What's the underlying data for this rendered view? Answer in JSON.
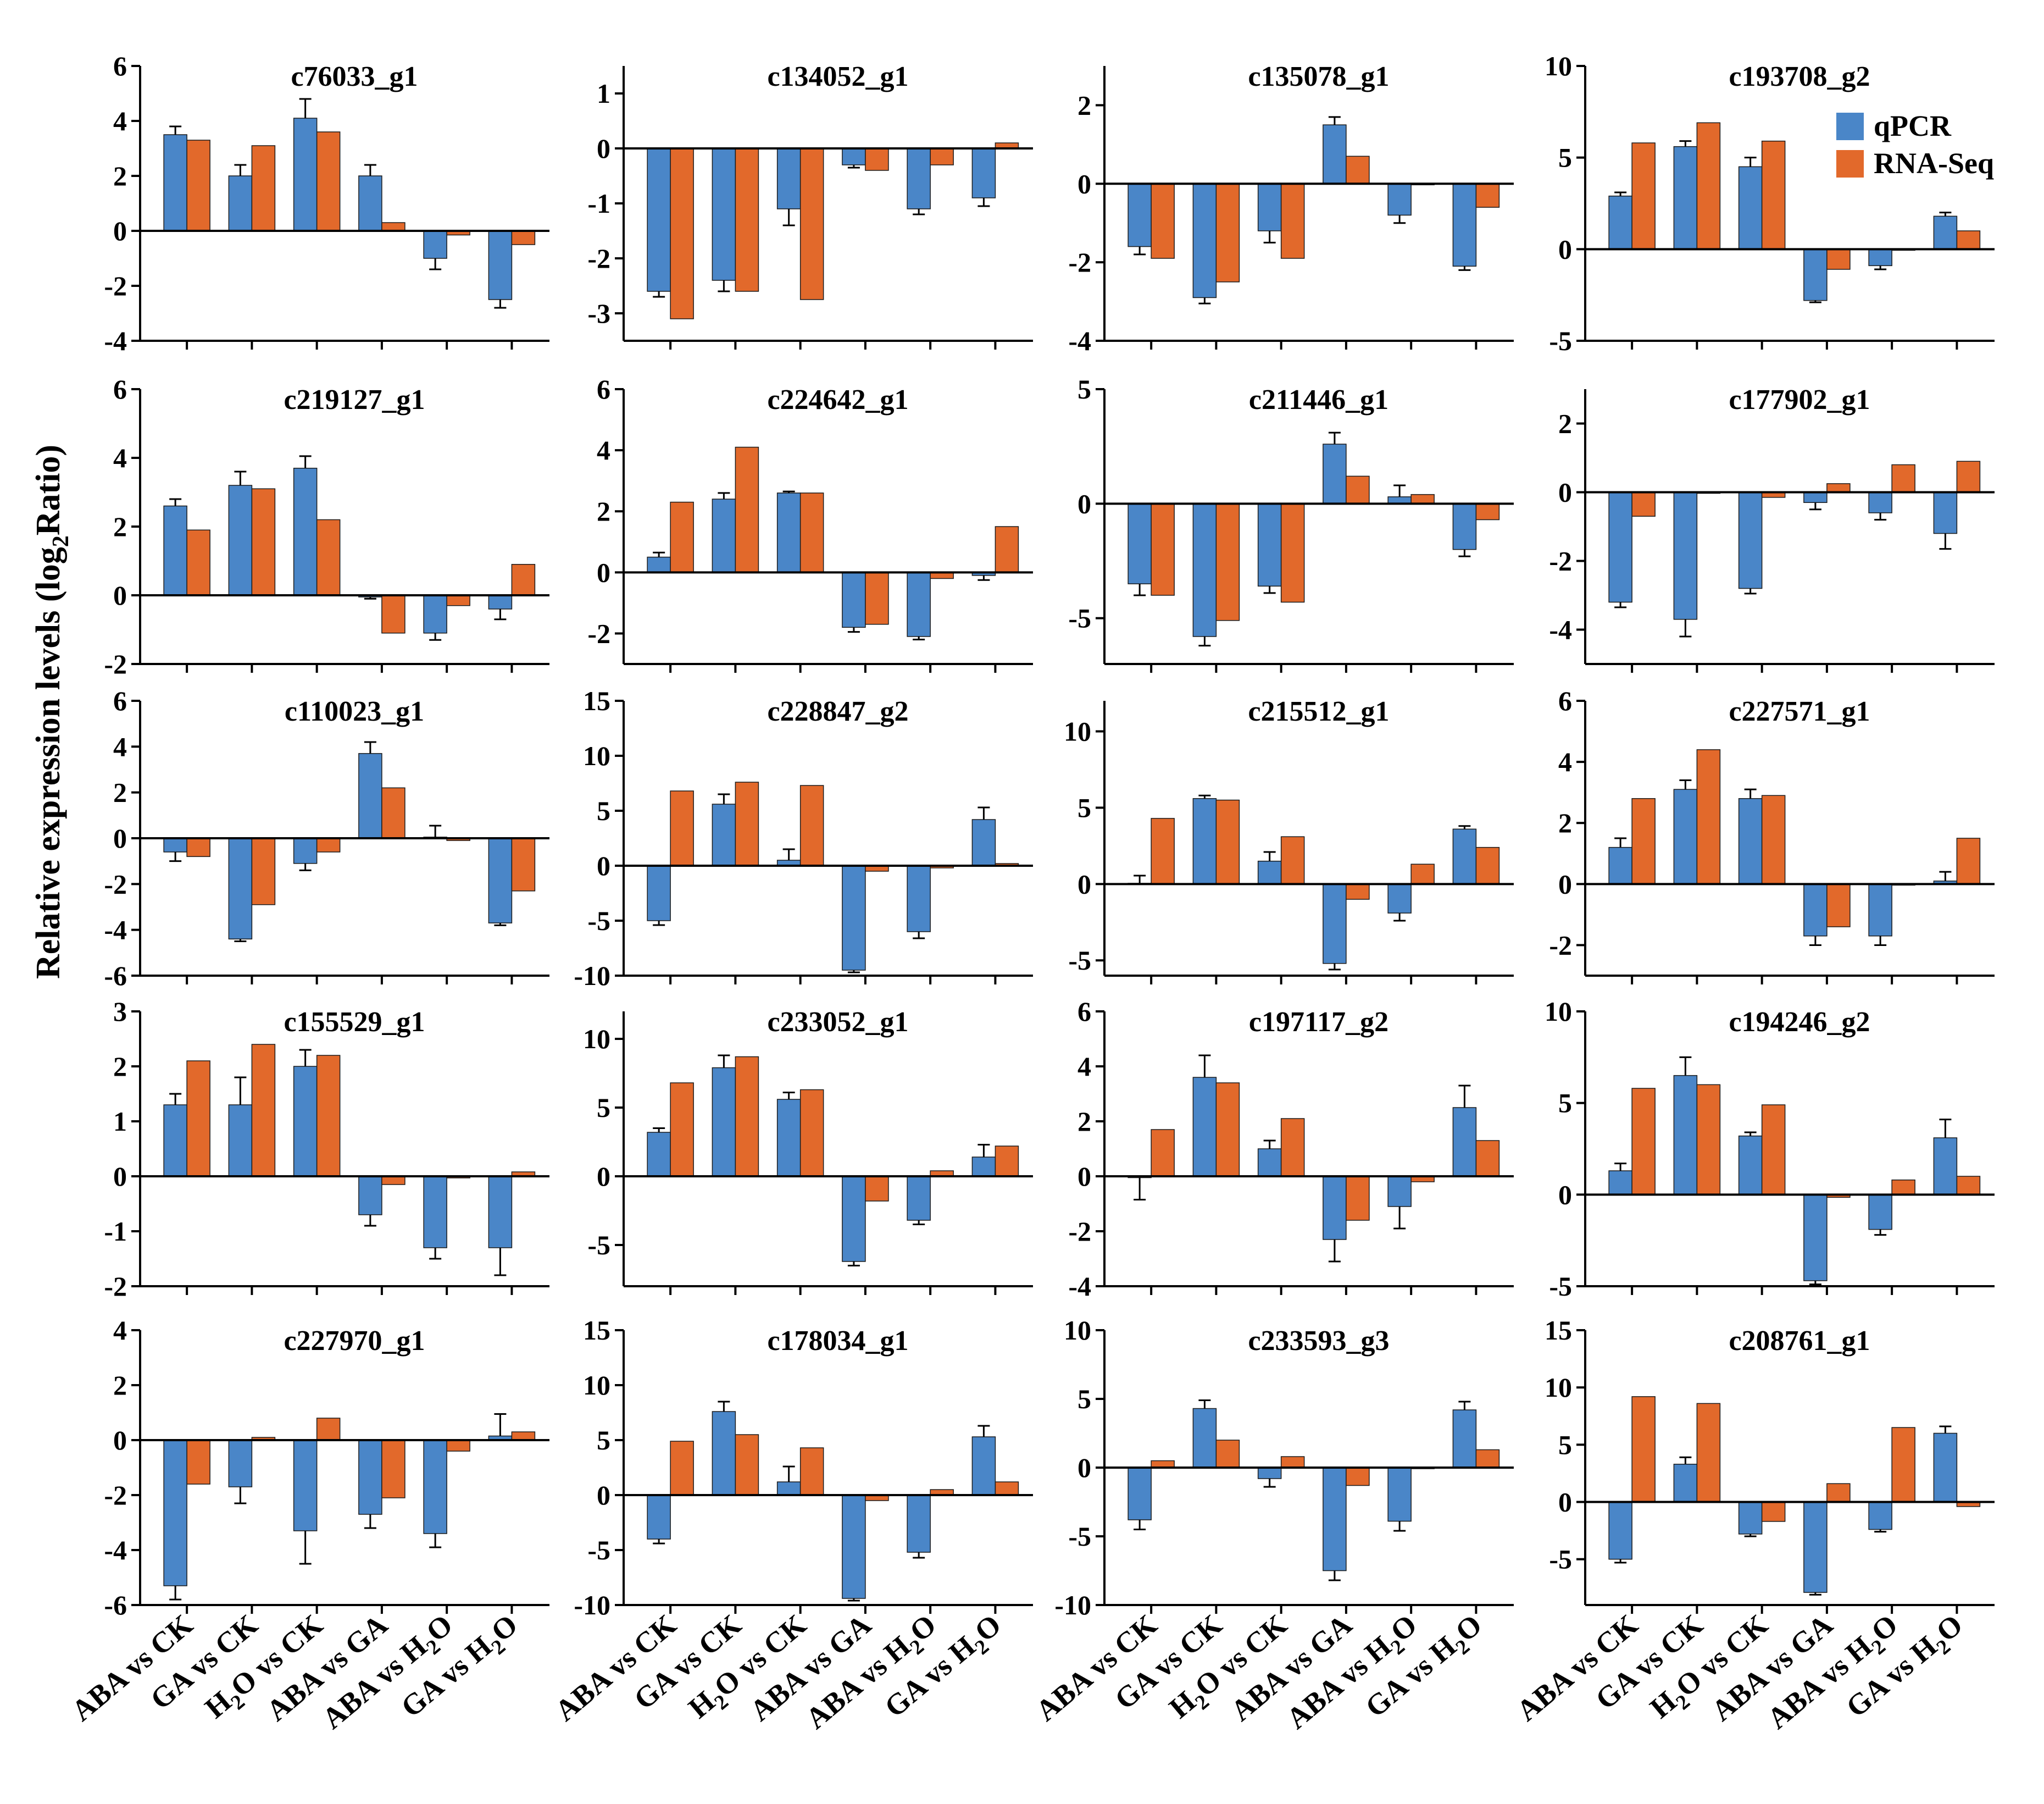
{
  "figure": {
    "ylabel_main": "Relative expression  levels (log",
    "ylabel_sub": "2",
    "ylabel_end": "Ratio)"
  },
  "legend": {
    "entries": [
      {
        "label": "qPCR",
        "color": "#4a86c8"
      },
      {
        "label": "RNA-Seq",
        "color": "#e2692b"
      }
    ]
  },
  "chart_data": {
    "type": "bar",
    "categories": [
      {
        "pre": "ABA vs CK",
        "sub": "",
        "post": ""
      },
      {
        "pre": "GA vs CK",
        "sub": "",
        "post": ""
      },
      {
        "pre": "H",
        "sub": "2",
        "post": "O vs CK"
      },
      {
        "pre": "ABA vs GA",
        "sub": "",
        "post": ""
      },
      {
        "pre": "ABA vs H",
        "sub": "2",
        "post": "O"
      },
      {
        "pre": "GA vs H",
        "sub": "2",
        "post": "O"
      }
    ],
    "series_names": [
      "qPCR",
      "RNA-Seq"
    ],
    "panels": [
      {
        "title": "c76033_g1",
        "ylim": [
          -4,
          6
        ],
        "ticks": [
          6,
          4,
          2,
          0,
          -2,
          -4
        ],
        "qpcr": [
          3.5,
          2.0,
          4.1,
          2.0,
          -1.0,
          -2.5
        ],
        "err": [
          0.3,
          0.4,
          0.7,
          0.4,
          0.4,
          0.3
        ],
        "rnaseq": [
          3.3,
          3.1,
          3.6,
          0.3,
          -0.15,
          -0.5
        ]
      },
      {
        "title": "c134052_g1",
        "ylim": [
          -3.5,
          1.5
        ],
        "ticks": [
          1,
          0,
          -1,
          -2,
          -3
        ],
        "qpcr": [
          -2.6,
          -2.4,
          -1.1,
          -0.3,
          -1.1,
          -0.9
        ],
        "err": [
          0.1,
          0.2,
          0.3,
          0.05,
          0.1,
          0.15
        ],
        "rnaseq": [
          -3.1,
          -2.6,
          -2.75,
          -0.4,
          -0.3,
          0.1
        ]
      },
      {
        "title": "c135078_g1",
        "ylim": [
          -4,
          3
        ],
        "ticks": [
          2,
          0,
          -2,
          -4
        ],
        "qpcr": [
          -1.6,
          -2.9,
          -1.2,
          1.5,
          -0.8,
          -2.1
        ],
        "err": [
          0.2,
          0.15,
          0.3,
          0.2,
          0.2,
          0.1
        ],
        "rnaseq": [
          -1.9,
          -2.5,
          -1.9,
          0.7,
          0.0,
          -0.6
        ]
      },
      {
        "title": "c193708_g2",
        "ylim": [
          -5,
          10
        ],
        "ticks": [
          10,
          5,
          0,
          -5
        ],
        "qpcr": [
          2.9,
          5.6,
          4.5,
          -2.8,
          -0.9,
          1.8
        ],
        "err": [
          0.2,
          0.3,
          0.5,
          0.1,
          0.2,
          0.2
        ],
        "rnaseq": [
          5.8,
          6.9,
          5.9,
          -1.1,
          0.0,
          1.0
        ]
      },
      {
        "title": "c219127_g1",
        "ylim": [
          -2,
          6
        ],
        "ticks": [
          6,
          4,
          2,
          0,
          -2
        ],
        "qpcr": [
          2.6,
          3.2,
          3.7,
          -0.05,
          -1.1,
          -0.4
        ],
        "err": [
          0.2,
          0.4,
          0.35,
          0.05,
          0.2,
          0.3
        ],
        "rnaseq": [
          1.9,
          3.1,
          2.2,
          -1.1,
          -0.3,
          0.9
        ]
      },
      {
        "title": "c224642_g1",
        "ylim": [
          -3,
          6
        ],
        "ticks": [
          6,
          4,
          2,
          0,
          -2
        ],
        "qpcr": [
          0.5,
          2.4,
          2.6,
          -1.8,
          -2.1,
          -0.1
        ],
        "err": [
          0.15,
          0.2,
          0.05,
          0.15,
          0.1,
          0.15
        ],
        "rnaseq": [
          2.3,
          4.1,
          2.6,
          -1.7,
          -0.2,
          1.5
        ]
      },
      {
        "title": "c211446_g1",
        "ylim": [
          -7,
          5
        ],
        "ticks": [
          5,
          0,
          -5
        ],
        "qpcr": [
          -3.5,
          -5.8,
          -3.6,
          2.6,
          0.3,
          -2.0
        ],
        "err": [
          0.5,
          0.4,
          0.3,
          0.5,
          0.5,
          0.3
        ],
        "rnaseq": [
          -4.0,
          -5.1,
          -4.3,
          1.2,
          0.4,
          -0.7
        ]
      },
      {
        "title": "c177902_g1",
        "ylim": [
          -5,
          3
        ],
        "ticks": [
          2,
          0,
          -2,
          -4
        ],
        "qpcr": [
          -3.2,
          -3.7,
          -2.8,
          -0.3,
          -0.6,
          -1.2
        ],
        "err": [
          0.15,
          0.5,
          0.15,
          0.2,
          0.2,
          0.45
        ],
        "rnaseq": [
          -0.7,
          0.0,
          -0.15,
          0.25,
          0.8,
          0.9
        ]
      },
      {
        "title": "c110023_g1",
        "ylim": [
          -6,
          6
        ],
        "ticks": [
          6,
          4,
          2,
          0,
          -2,
          -4,
          -6
        ],
        "qpcr": [
          -0.6,
          -4.4,
          -1.1,
          3.7,
          0.05,
          -3.7
        ],
        "err": [
          0.4,
          0.1,
          0.3,
          0.5,
          0.5,
          0.1
        ],
        "rnaseq": [
          -0.8,
          -2.9,
          -0.6,
          2.2,
          -0.1,
          -2.3
        ]
      },
      {
        "title": "c228847_g2",
        "ylim": [
          -10,
          15
        ],
        "ticks": [
          15,
          10,
          5,
          0,
          -5,
          -10
        ],
        "qpcr": [
          -5.0,
          5.6,
          0.5,
          -9.5,
          -6.0,
          4.2
        ],
        "err": [
          0.4,
          0.9,
          1.0,
          0.2,
          0.6,
          1.1
        ],
        "rnaseq": [
          6.8,
          7.6,
          7.3,
          -0.5,
          -0.2,
          0.2
        ]
      },
      {
        "title": "c215512_g1",
        "ylim": [
          -6,
          12
        ],
        "ticks": [
          10,
          5,
          0,
          -5
        ],
        "qpcr": [
          0.05,
          5.6,
          1.5,
          -5.2,
          -1.9,
          3.6
        ],
        "err": [
          0.5,
          0.2,
          0.6,
          0.4,
          0.5,
          0.2
        ],
        "rnaseq": [
          4.3,
          5.5,
          3.1,
          -1.0,
          1.3,
          2.4
        ]
      },
      {
        "title": "c227571_g1",
        "ylim": [
          -3,
          6
        ],
        "ticks": [
          6,
          4,
          2,
          0,
          -2
        ],
        "qpcr": [
          1.2,
          3.1,
          2.8,
          -1.7,
          -1.7,
          0.1
        ],
        "err": [
          0.3,
          0.3,
          0.3,
          0.3,
          0.3,
          0.3
        ],
        "rnaseq": [
          2.8,
          4.4,
          2.9,
          -1.4,
          0.0,
          1.5
        ]
      },
      {
        "title": "c155529_g1",
        "ylim": [
          -2,
          3
        ],
        "ticks": [
          3,
          2,
          1,
          0,
          -1,
          -2
        ],
        "qpcr": [
          1.3,
          1.3,
          2.0,
          -0.7,
          -1.3,
          -1.3
        ],
        "err": [
          0.2,
          0.5,
          0.3,
          0.2,
          0.2,
          0.5
        ],
        "rnaseq": [
          2.1,
          2.4,
          2.2,
          -0.15,
          -0.03,
          0.08
        ]
      },
      {
        "title": "c233052_g1",
        "ylim": [
          -8,
          12
        ],
        "ticks": [
          10,
          5,
          0,
          -5
        ],
        "qpcr": [
          3.2,
          7.9,
          5.6,
          -6.2,
          -3.2,
          1.4
        ],
        "err": [
          0.3,
          0.9,
          0.5,
          0.3,
          0.3,
          0.9
        ],
        "rnaseq": [
          6.8,
          8.7,
          6.3,
          -1.8,
          0.4,
          2.2
        ]
      },
      {
        "title": "c197117_g2",
        "ylim": [
          -4,
          6
        ],
        "ticks": [
          6,
          4,
          2,
          0,
          -2,
          -4
        ],
        "qpcr": [
          -0.05,
          3.6,
          1.0,
          -2.3,
          -1.1,
          2.5
        ],
        "err": [
          0.8,
          0.8,
          0.3,
          0.8,
          0.8,
          0.8
        ],
        "rnaseq": [
          1.7,
          3.4,
          2.1,
          -1.6,
          -0.2,
          1.3
        ]
      },
      {
        "title": "c194246_g2",
        "ylim": [
          -5,
          10
        ],
        "ticks": [
          10,
          5,
          0,
          -5
        ],
        "qpcr": [
          1.3,
          6.5,
          3.2,
          -4.7,
          -1.9,
          3.1
        ],
        "err": [
          0.4,
          1.0,
          0.2,
          0.2,
          0.3,
          1.0
        ],
        "rnaseq": [
          5.8,
          6.0,
          4.9,
          -0.15,
          0.8,
          1.0
        ]
      },
      {
        "title": "c227970_g1",
        "ylim": [
          -6,
          4
        ],
        "ticks": [
          4,
          2,
          0,
          -2,
          -4,
          -6
        ],
        "qpcr": [
          -5.3,
          -1.7,
          -3.3,
          -2.7,
          -3.4,
          0.15
        ],
        "err": [
          0.5,
          0.6,
          1.2,
          0.5,
          0.5,
          0.8
        ],
        "rnaseq": [
          -1.6,
          0.1,
          0.8,
          -2.1,
          -0.4,
          0.3
        ]
      },
      {
        "title": "c178034_g1",
        "ylim": [
          -10,
          15
        ],
        "ticks": [
          15,
          10,
          5,
          0,
          -5,
          -10
        ],
        "qpcr": [
          -4.0,
          7.6,
          1.2,
          -9.4,
          -5.2,
          5.3
        ],
        "err": [
          0.4,
          0.9,
          1.4,
          0.2,
          0.5,
          1.0
        ],
        "rnaseq": [
          4.9,
          5.5,
          4.3,
          -0.5,
          0.5,
          1.2
        ]
      },
      {
        "title": "c233593_g3",
        "ylim": [
          -10,
          10
        ],
        "ticks": [
          10,
          5,
          0,
          -5,
          -10
        ],
        "qpcr": [
          -3.8,
          4.3,
          -0.8,
          -7.5,
          -3.9,
          4.2
        ],
        "err": [
          0.7,
          0.6,
          0.6,
          0.7,
          0.7,
          0.6
        ],
        "rnaseq": [
          0.5,
          2.0,
          0.8,
          -1.3,
          0.0,
          1.3
        ]
      },
      {
        "title": "c208761_g1",
        "ylim": [
          -9,
          15
        ],
        "ticks": [
          15,
          10,
          5,
          0,
          -5
        ],
        "qpcr": [
          -5.0,
          3.3,
          -2.8,
          -7.9,
          -2.4,
          6.0
        ],
        "err": [
          0.3,
          0.6,
          0.2,
          0.2,
          0.2,
          0.6
        ],
        "rnaseq": [
          9.2,
          8.6,
          -1.7,
          1.6,
          6.5,
          -0.4
        ]
      }
    ]
  }
}
